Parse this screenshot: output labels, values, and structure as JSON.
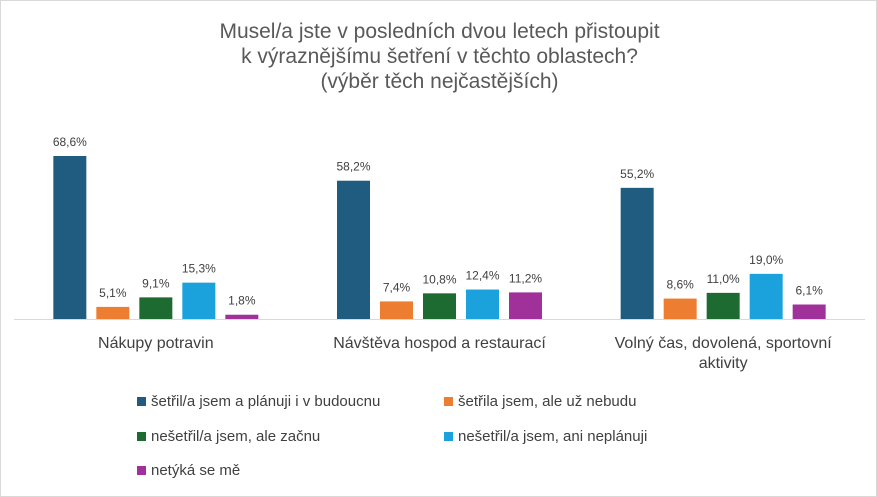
{
  "chart_data": {
    "type": "bar",
    "title": [
      "Musel/a jste v posledních dvou letech přistoupit",
      "k výraznějšímu šetření v těchto oblastech?",
      "(výběr těch nejčastějších)"
    ],
    "categories": [
      [
        "Nákupy potravin"
      ],
      [
        "Návštěva hospod a restaurací"
      ],
      [
        "Volný čas, dovolená, sportovní",
        "aktivity"
      ]
    ],
    "series": [
      {
        "name": "šetřil/a jsem a plánuji i v budoucnu",
        "color": "#1f5c7f",
        "values": [
          68.6,
          58.2,
          55.2
        ],
        "labels": [
          "68,6%",
          "58,2%",
          "55,2%"
        ]
      },
      {
        "name": "šetřila jsem, ale už nebudu",
        "color": "#ed7d31",
        "values": [
          5.1,
          7.4,
          8.6
        ],
        "labels": [
          "5,1%",
          "7,4%",
          "8,6%"
        ]
      },
      {
        "name": "nešetřil/a jsem, ale začnu",
        "color": "#1e6b31",
        "values": [
          9.1,
          10.8,
          11.0
        ],
        "labels": [
          "9,1%",
          "10,8%",
          "11,0%"
        ]
      },
      {
        "name": "nešetřil/a jsem, ani neplánuji",
        "color": "#1ba1dc",
        "values": [
          15.3,
          12.4,
          19.0
        ],
        "labels": [
          "15,3%",
          "12,4%",
          "19,0%"
        ]
      },
      {
        "name": "netýká se mě",
        "color": "#a0319b",
        "values": [
          1.8,
          11.2,
          6.1
        ],
        "labels": [
          "1,8%",
          "11,2%",
          "6,1%"
        ]
      }
    ],
    "ylim": [
      0,
      70
    ],
    "grid": false,
    "legend": "bottom"
  }
}
